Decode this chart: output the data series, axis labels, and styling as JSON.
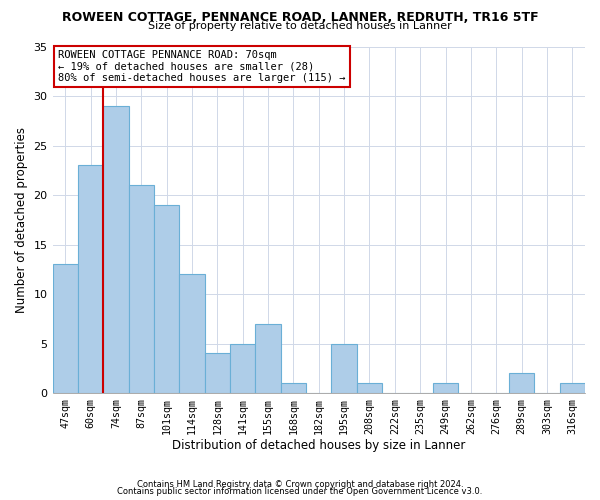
{
  "title": "ROWEEN COTTAGE, PENNANCE ROAD, LANNER, REDRUTH, TR16 5TF",
  "subtitle": "Size of property relative to detached houses in Lanner",
  "xlabel": "Distribution of detached houses by size in Lanner",
  "ylabel": "Number of detached properties",
  "bar_color": "#aecde8",
  "bar_edge_color": "#6aafd6",
  "bin_labels": [
    "47sqm",
    "60sqm",
    "74sqm",
    "87sqm",
    "101sqm",
    "114sqm",
    "128sqm",
    "141sqm",
    "155sqm",
    "168sqm",
    "182sqm",
    "195sqm",
    "208sqm",
    "222sqm",
    "235sqm",
    "249sqm",
    "262sqm",
    "276sqm",
    "289sqm",
    "303sqm",
    "316sqm"
  ],
  "values": [
    13,
    23,
    29,
    21,
    19,
    12,
    4,
    5,
    7,
    1,
    0,
    5,
    1,
    0,
    0,
    1,
    0,
    0,
    2,
    0,
    1
  ],
  "ylim": [
    0,
    35
  ],
  "yticks": [
    0,
    5,
    10,
    15,
    20,
    25,
    30,
    35
  ],
  "vline_pos": 1.5,
  "vline_color": "#cc0000",
  "annotation_line1": "ROWEEN COTTAGE PENNANCE ROAD: 70sqm",
  "annotation_line2": "← 19% of detached houses are smaller (28)",
  "annotation_line3": "80% of semi-detached houses are larger (115) →",
  "annotation_box_color": "#ffffff",
  "annotation_border_color": "#cc0000",
  "footer1": "Contains HM Land Registry data © Crown copyright and database right 2024.",
  "footer2": "Contains public sector information licensed under the Open Government Licence v3.0.",
  "background_color": "#ffffff",
  "grid_color": "#d0d8e8"
}
